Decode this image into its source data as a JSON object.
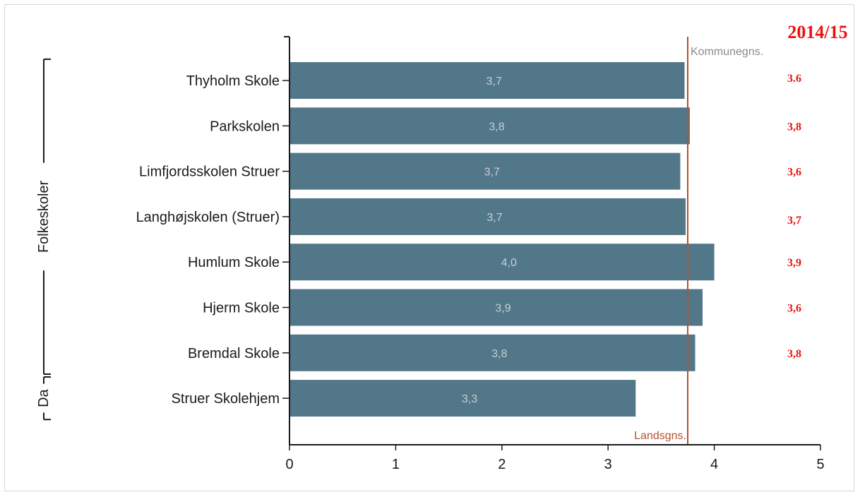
{
  "chart_data": {
    "type": "bar",
    "orientation": "horizontal",
    "categories": [
      "Thyholm Skole",
      "Parkskolen",
      "Limfjordsskolen Struer",
      "Langhøjskolen (Struer)",
      "Humlum Skole",
      "Hjerm Skole",
      "Bremdal Skole",
      "Struer Skolehjem"
    ],
    "values": [
      3.72,
      3.77,
      3.68,
      3.73,
      4.0,
      3.89,
      3.82,
      3.26
    ],
    "value_labels": [
      "3,7",
      "3,8",
      "3,7",
      "3,7",
      "4,0",
      "3,9",
      "3,8",
      "3,3"
    ],
    "xlim": [
      0,
      5
    ],
    "xticks": [
      0,
      1,
      2,
      3,
      4,
      5
    ],
    "xtick_labels": [
      "0",
      "1",
      "2",
      "3",
      "4",
      "5"
    ],
    "bar_color": "#527789",
    "reference_line": {
      "value": 3.75,
      "color": "#b5532d",
      "label_top": "Kommunegns.",
      "label_bottom": "Landsgns."
    },
    "groups": [
      {
        "label": "Folkeskoler",
        "first_index": 0,
        "last_index": 6
      },
      {
        "label": "Da",
        "first_index": 7,
        "last_index": 7
      }
    ],
    "overlay": {
      "year": "2014/15",
      "previous_values": [
        "3.6",
        "3,8",
        "3,6",
        "3,7",
        "3,9",
        "3,6",
        "3,8"
      ],
      "color": "#ee1111"
    }
  }
}
